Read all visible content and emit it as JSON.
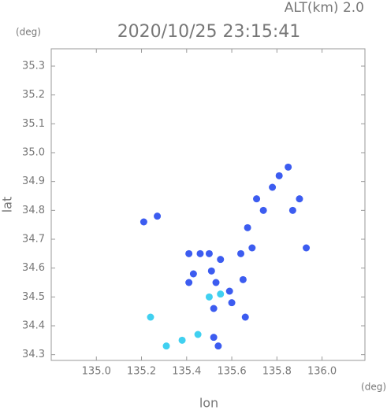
{
  "chart_data": {
    "type": "scatter",
    "altitude_label": "ALT(km) 2.0",
    "title": "2020/10/25 23:15:41",
    "y_unit": "(deg)",
    "x_unit": "(deg)",
    "ylabel": "lat",
    "xlabel": "lon",
    "xlim": [
      134.8,
      136.19
    ],
    "ylim": [
      34.28,
      35.36
    ],
    "xticks": [
      {
        "value": 135,
        "label": "135.0"
      },
      135.2,
      135.4,
      135.6,
      135.8,
      {
        "value": 136,
        "label": "136.0"
      }
    ],
    "yticks": [
      34.3,
      34.4,
      34.5,
      34.6,
      34.7,
      34.8,
      34.9,
      {
        "value": 35,
        "label": "35.0"
      },
      35.1,
      35.2,
      35.3
    ],
    "grid": false,
    "series": [
      {
        "color": "#3c5cf0",
        "x": [
          135.21,
          135.27,
          135.41,
          135.46,
          135.5,
          135.55,
          135.64,
          135.51,
          135.53,
          135.59,
          135.6,
          135.52,
          135.66,
          135.43,
          135.41,
          135.69,
          135.67,
          135.78,
          135.81,
          135.85,
          135.9,
          135.87,
          135.93,
          135.71,
          135.52,
          135.54,
          135.74,
          135.65
        ],
        "values": [
          34.76,
          34.78,
          34.65,
          34.65,
          34.65,
          34.63,
          34.65,
          34.59,
          34.55,
          34.52,
          34.48,
          34.46,
          34.43,
          34.58,
          34.55,
          34.67,
          34.74,
          34.88,
          34.92,
          34.95,
          34.84,
          34.8,
          34.67,
          34.84,
          34.36,
          34.33,
          34.8,
          34.56
        ]
      },
      {
        "color": "#40d0f0",
        "x": [
          135.24,
          135.55,
          135.5,
          135.38,
          135.45,
          135.31
        ],
        "values": [
          34.43,
          34.51,
          34.5,
          34.35,
          34.37,
          34.33
        ]
      }
    ]
  }
}
